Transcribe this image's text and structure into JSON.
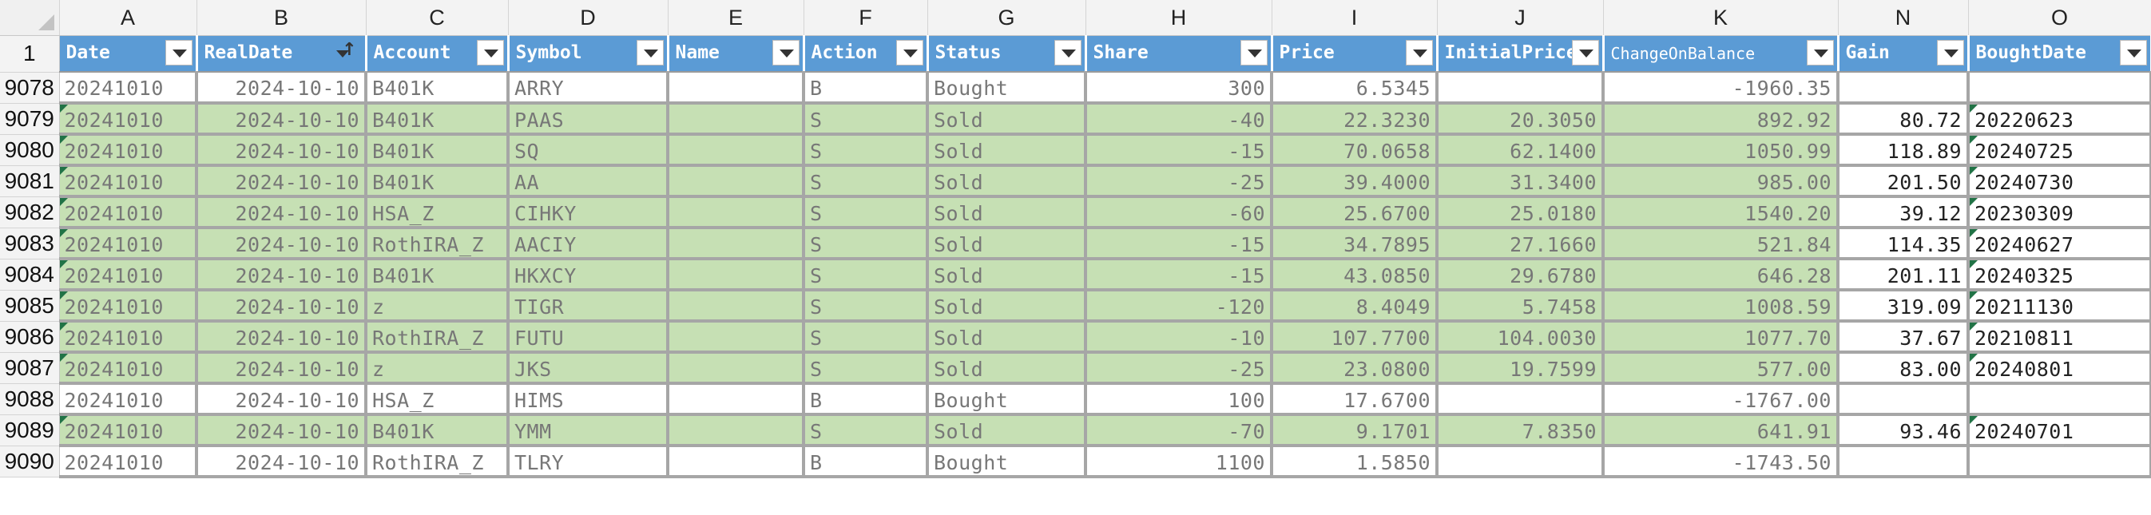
{
  "columns": [
    "A",
    "B",
    "C",
    "D",
    "E",
    "F",
    "G",
    "H",
    "I",
    "J",
    "K",
    "N",
    "O"
  ],
  "headers": [
    "Date",
    "RealDate",
    "Account",
    "Symbol",
    "Name",
    "Action",
    "Status",
    "Share",
    "Price",
    "InitialPrice",
    "ChangeOnBalance",
    "Gain",
    "BoughtDate"
  ],
  "header_row_number": "1",
  "rows": [
    {
      "n": "9078",
      "status": "bought",
      "cells": [
        "20241010",
        "2024-10-10",
        "B401K",
        "ARRY",
        "",
        "B",
        "Bought",
        "300",
        "6.5345",
        "",
        "-1960.35",
        "",
        ""
      ]
    },
    {
      "n": "9079",
      "status": "sold",
      "cells": [
        "20241010",
        "2024-10-10",
        "B401K",
        "PAAS",
        "",
        "S",
        "Sold",
        "-40",
        "22.3230",
        "20.3050",
        "892.92",
        "80.72",
        "20220623"
      ]
    },
    {
      "n": "9080",
      "status": "sold",
      "cells": [
        "20241010",
        "2024-10-10",
        "B401K",
        "SQ",
        "",
        "S",
        "Sold",
        "-15",
        "70.0658",
        "62.1400",
        "1050.99",
        "118.89",
        "20240725"
      ]
    },
    {
      "n": "9081",
      "status": "sold",
      "cells": [
        "20241010",
        "2024-10-10",
        "B401K",
        "AA",
        "",
        "S",
        "Sold",
        "-25",
        "39.4000",
        "31.3400",
        "985.00",
        "201.50",
        "20240730"
      ]
    },
    {
      "n": "9082",
      "status": "sold",
      "cells": [
        "20241010",
        "2024-10-10",
        "HSA_Z",
        "CIHKY",
        "",
        "S",
        "Sold",
        "-60",
        "25.6700",
        "25.0180",
        "1540.20",
        "39.12",
        "20230309"
      ]
    },
    {
      "n": "9083",
      "status": "sold",
      "cells": [
        "20241010",
        "2024-10-10",
        "RothIRA_Z",
        "AACIY",
        "",
        "S",
        "Sold",
        "-15",
        "34.7895",
        "27.1660",
        "521.84",
        "114.35",
        "20240627"
      ]
    },
    {
      "n": "9084",
      "status": "sold",
      "cells": [
        "20241010",
        "2024-10-10",
        "B401K",
        "HKXCY",
        "",
        "S",
        "Sold",
        "-15",
        "43.0850",
        "29.6780",
        "646.28",
        "201.11",
        "20240325"
      ]
    },
    {
      "n": "9085",
      "status": "sold",
      "cells": [
        "20241010",
        "2024-10-10",
        "z",
        "TIGR",
        "",
        "S",
        "Sold",
        "-120",
        "8.4049",
        "5.7458",
        "1008.59",
        "319.09",
        "20211130"
      ]
    },
    {
      "n": "9086",
      "status": "sold",
      "cells": [
        "20241010",
        "2024-10-10",
        "RothIRA_Z",
        "FUTU",
        "",
        "S",
        "Sold",
        "-10",
        "107.7700",
        "104.0030",
        "1077.70",
        "37.67",
        "20210811"
      ]
    },
    {
      "n": "9087",
      "status": "sold",
      "cells": [
        "20241010",
        "2024-10-10",
        "z",
        "JKS",
        "",
        "S",
        "Sold",
        "-25",
        "23.0800",
        "19.7599",
        "577.00",
        "83.00",
        "20240801"
      ]
    },
    {
      "n": "9088",
      "status": "bought",
      "cells": [
        "20241010",
        "2024-10-10",
        "HSA_Z",
        "HIMS",
        "",
        "B",
        "Bought",
        "100",
        "17.6700",
        "",
        "-1767.00",
        "",
        ""
      ]
    },
    {
      "n": "9089",
      "status": "sold",
      "cells": [
        "20241010",
        "2024-10-10",
        "B401K",
        "YMM",
        "",
        "S",
        "Sold",
        "-70",
        "9.1701",
        "7.8350",
        "641.91",
        "93.46",
        "20240701"
      ]
    },
    {
      "n": "9090",
      "status": "bought",
      "cells": [
        "20241010",
        "2024-10-10",
        "RothIRA_Z",
        "TLRY",
        "",
        "B",
        "Bought",
        "1100",
        "1.5850",
        "",
        "-1743.50",
        "",
        ""
      ]
    }
  ],
  "colors": {
    "header_bg": "#5b9bd5",
    "sold_bg": "#c6e0b4",
    "bought_bg": "#ffffff",
    "cell_text": "#777777",
    "triangle": "#217346"
  }
}
